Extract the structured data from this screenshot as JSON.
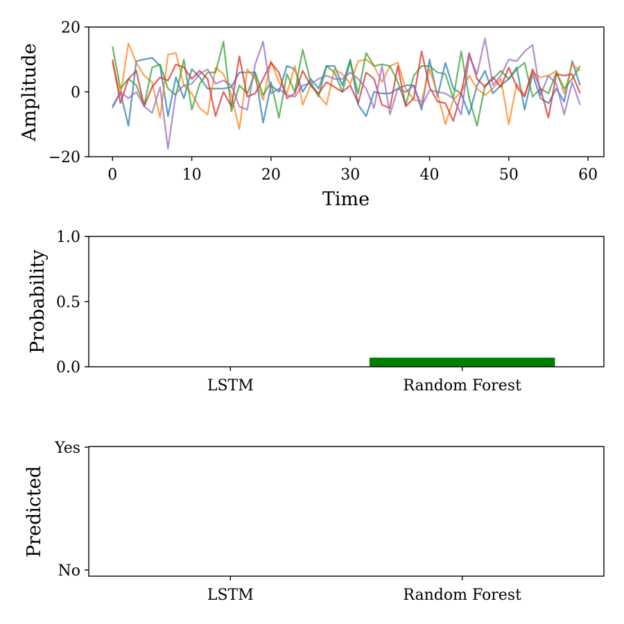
{
  "chart_data": [
    {
      "type": "line",
      "title": "",
      "xlabel": "Time",
      "ylabel": "Amplitude",
      "xlim": [
        -3,
        62
      ],
      "ylim": [
        -20,
        20
      ],
      "xticks": [
        0,
        10,
        20,
        30,
        40,
        50,
        60
      ],
      "yticks": [
        -20,
        0,
        20
      ],
      "xtick_labels": [
        "0",
        "10",
        "20",
        "30",
        "40",
        "50",
        "60"
      ],
      "ytick_labels": [
        "−20",
        "0",
        "20"
      ],
      "grid": false,
      "series": [
        {
          "color": "#1f77b4",
          "values": [
            -4.5,
            0,
            -10.5,
            9.5,
            10,
            10.5,
            8,
            -7.5,
            4.5,
            -2,
            7,
            4.5,
            1,
            1,
            1,
            1.5,
            6,
            6,
            6,
            -9.5,
            2,
            0,
            8,
            7,
            0,
            4,
            1,
            8,
            8,
            2,
            10,
            -4,
            -7.5,
            0,
            -0.5,
            -0.5,
            1,
            2,
            2,
            -5.5,
            10,
            -1.5,
            9,
            1,
            -0.5,
            -7,
            2,
            6.5,
            -0.5,
            2,
            4,
            7.5,
            -5.5,
            5.5,
            -2,
            -3.5,
            1,
            -3,
            9.5,
            2
          ]
        },
        {
          "color": "#ff7f0e",
          "values": [
            9,
            -1,
            15,
            9,
            5,
            3,
            -8,
            11.5,
            12,
            2,
            -0.5,
            -5,
            -7,
            7.5,
            5.5,
            -1,
            -11.5,
            7,
            4,
            -2.5,
            9.5,
            3,
            -0.5,
            8,
            -4,
            2,
            -1,
            -4,
            7,
            5.5,
            2.5,
            9.5,
            10,
            8,
            3,
            8,
            9,
            1,
            -2.5,
            -3,
            7,
            -0.5,
            -10,
            -2.5,
            0,
            5,
            1,
            -1,
            1,
            4,
            -10,
            2.5,
            -1,
            6,
            4.5,
            5,
            6.5,
            -0.5,
            8.5,
            6.5
          ]
        },
        {
          "color": "#2ca02c",
          "values": [
            14,
            1,
            4,
            2,
            -4,
            7.5,
            8.5,
            1,
            -1,
            10,
            -5.5,
            2.5,
            6,
            6,
            15.5,
            -6,
            2,
            -0.5,
            6,
            -1,
            3,
            -8,
            5.5,
            0,
            13,
            3,
            -1.5,
            8,
            6,
            0,
            9.5,
            -0.5,
            12,
            8,
            8.5,
            8,
            3,
            -4,
            5,
            8,
            8,
            6,
            5.5,
            -2,
            12.5,
            -2,
            -10.5,
            2,
            4,
            6.5,
            4,
            7,
            9,
            -1.5,
            1,
            -0.5,
            6,
            1,
            4,
            8
          ]
        },
        {
          "color": "#d62728",
          "values": [
            10,
            -3.5,
            4,
            6.5,
            -4.5,
            1.5,
            4.5,
            3.5,
            8.5,
            7.5,
            4,
            6.5,
            4,
            -7.5,
            0,
            -4.5,
            11,
            -1.5,
            -0.5,
            4,
            9,
            6,
            -2,
            -0.5,
            6.5,
            2,
            -0.5,
            3,
            1.5,
            0,
            2,
            -3.5,
            6,
            4,
            -4,
            -5,
            8,
            -4.5,
            -2,
            12.5,
            1.5,
            -3,
            -3.5,
            -9,
            -0.5,
            12,
            4,
            1.5,
            4.5,
            1.5,
            7.5,
            1.5,
            -1.5,
            7,
            1,
            -8,
            5.5,
            5,
            5.5,
            -0.5
          ]
        },
        {
          "color": "#9467bd",
          "values": [
            -5,
            0,
            -2,
            0,
            -4.5,
            -6.5,
            1.5,
            -17.5,
            -0.5,
            2,
            2.5,
            5.5,
            7,
            2.5,
            3.5,
            2,
            -4.5,
            -5.5,
            8.5,
            15.5,
            -0.5,
            1,
            -1,
            -1.5,
            2,
            2.5,
            4,
            5,
            4,
            4,
            6,
            4,
            1,
            -5,
            8,
            -7,
            1,
            0,
            2,
            -4.5,
            0.5,
            0,
            -0.5,
            -2,
            -7,
            11,
            5.5,
            16.5,
            2,
            5,
            10,
            9.5,
            12.5,
            14.5,
            -1,
            5,
            2.5,
            -7,
            3,
            -4
          ]
        }
      ]
    },
    {
      "type": "bar",
      "title": "",
      "xlabel": "",
      "ylabel": "Probability",
      "categories": [
        "LSTM",
        "Random Forest"
      ],
      "values": [
        0.0,
        0.07
      ],
      "ylim": [
        0,
        1.0
      ],
      "yticks": [
        0.0,
        0.5,
        1.0
      ],
      "ytick_labels": [
        "0.0",
        "0.5",
        "1.0"
      ],
      "bar_color": "#008000",
      "grid": false
    },
    {
      "type": "scatter",
      "title": "",
      "xlabel": "",
      "ylabel": "Predicted",
      "categories": [
        "LSTM",
        "Random Forest"
      ],
      "values": [],
      "ytick_labels": [
        "No",
        "Yes"
      ],
      "grid": false
    }
  ]
}
